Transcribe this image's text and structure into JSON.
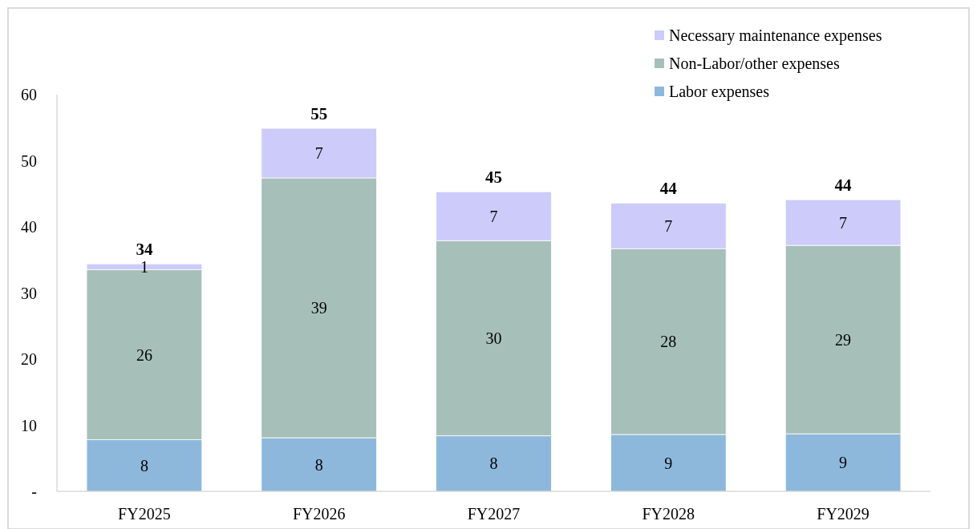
{
  "chart_data": {
    "type": "bar",
    "stacked": true,
    "categories": [
      "FY2025",
      "FY2026",
      "FY2027",
      "FY2028",
      "FY2029"
    ],
    "series": [
      {
        "name": "Labor expenses",
        "color": "#8db8dc",
        "values": [
          7.8,
          8.1,
          8.4,
          8.6,
          8.7
        ],
        "value_labels": [
          "8",
          "8",
          "8",
          "9",
          "9"
        ]
      },
      {
        "name": "Non-Labor/other expenses",
        "color": "#a6c0b9",
        "values": [
          25.7,
          39.3,
          29.5,
          28.1,
          28.5
        ],
        "value_labels": [
          "26",
          "39",
          "30",
          "28",
          "29"
        ]
      },
      {
        "name": "Necessary maintenance expenses",
        "color": "#cccbfa",
        "values": [
          0.9,
          7.5,
          7.4,
          6.9,
          6.9
        ],
        "value_labels": [
          "1",
          "7",
          "7",
          "7",
          "7"
        ]
      }
    ],
    "totals": [
      "34",
      "55",
      "45",
      "44",
      "44"
    ],
    "ylim": [
      0,
      60
    ],
    "yticks": [
      {
        "value": 0,
        "label": "-"
      },
      10,
      20,
      30,
      40,
      50,
      60
    ],
    "grid": false,
    "legend": "top right"
  }
}
